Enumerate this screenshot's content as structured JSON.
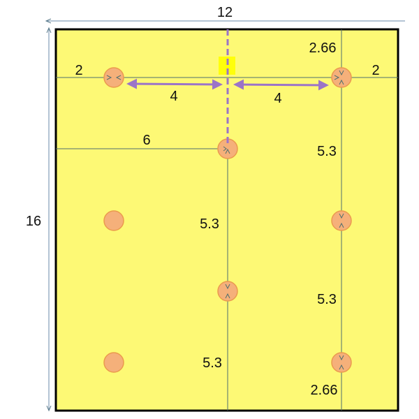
{
  "labels": {
    "overall_width": "12",
    "overall_height": "16",
    "left_edge_offset": "2",
    "right_edge_offset": "2",
    "left_span": "4",
    "right_span": "4",
    "center_offset": "6",
    "top_offset": "2.66",
    "right_spacing_1": "5.3",
    "center_spacing_1": "5.3",
    "right_spacing_2": "5.3",
    "center_spacing_2": "5.3",
    "bottom_offset": "2.66"
  },
  "colors": {
    "panel_fill": "#fdf975",
    "panel_border": "#000000",
    "hole_fill": "#f5b07a",
    "hole_stroke": "#eb9a4e",
    "guide_line": "#4f6f6f",
    "centerline": "#9b74c8",
    "marker": "#ffff00"
  }
}
